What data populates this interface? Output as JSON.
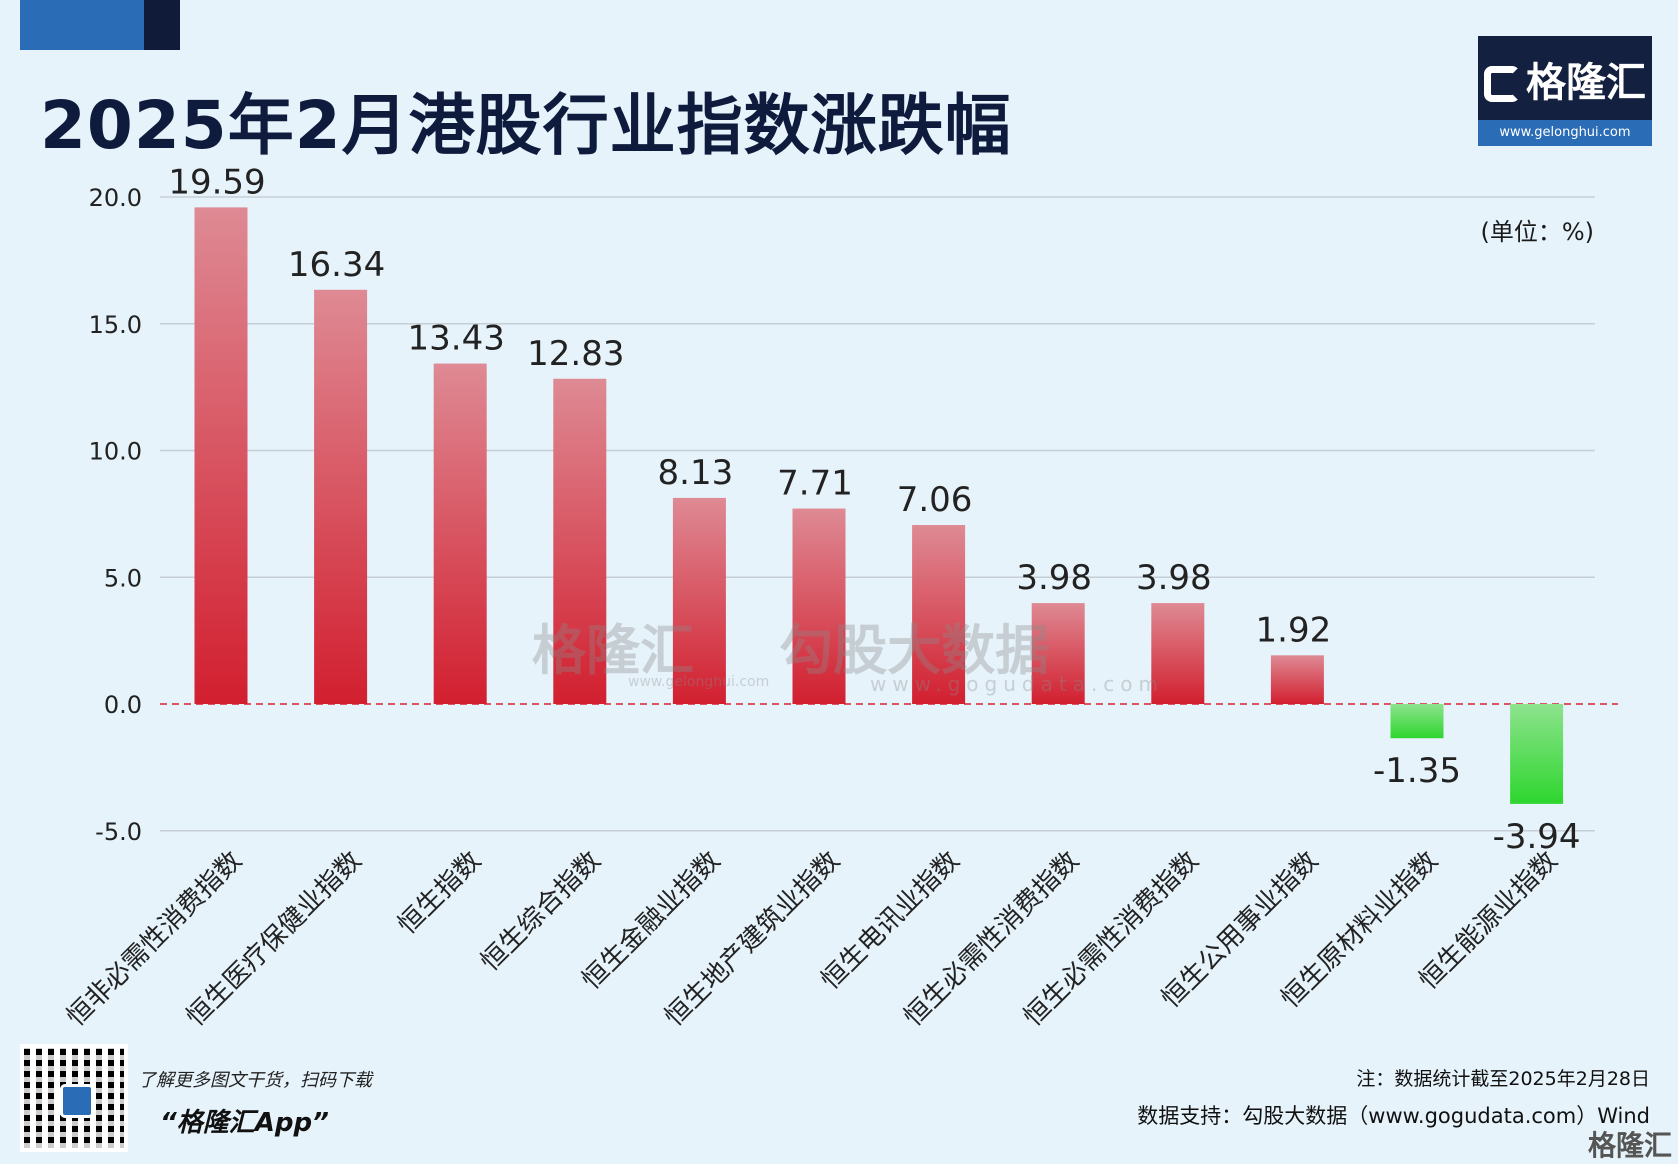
{
  "title": "2025年2月港股行业指数涨跌幅",
  "unit": "(单位：%)",
  "brand": {
    "name": "格隆汇",
    "url": "www.gelonghui.com"
  },
  "watermark": {
    "brand": "格隆汇",
    "brand_url": "www.gelonghui.com",
    "partner": "勾股大数据",
    "partner_url": "www.gogudata.com"
  },
  "footer": {
    "promo": "了解更多图文干货，扫码下载",
    "app_name": "“格隆汇App”",
    "note": "注：数据统计截至2025年2月28日",
    "source": "数据支持：勾股大数据（www.gogudata.com）Wind",
    "corner_logo": "格隆汇"
  },
  "colors": {
    "positive_top": "#de8a94",
    "positive_bottom": "#d21f2f",
    "negative_top": "#8de38d",
    "negative_bottom": "#2ed62e",
    "zero_line": "#d8232f",
    "grid": "#c7ced6"
  },
  "chart_data": {
    "type": "bar",
    "categories": [
      "恒非必需性消费指数",
      "恒生医疗保健业指数",
      "恒生指数",
      "恒生综合指数",
      "恒生金融业指数",
      "恒生地产建筑业指数",
      "恒生电讯业指数",
      "恒生必需性消费指数",
      "恒生必需性消费指数",
      "恒生公用事业指数",
      "恒生原材料业指数",
      "恒生能源业指数"
    ],
    "values": [
      19.59,
      16.34,
      13.43,
      12.83,
      8.13,
      7.71,
      7.06,
      3.98,
      3.98,
      1.92,
      -1.35,
      -3.94
    ],
    "value_labels": [
      "19.59",
      "16.34",
      "13.43",
      "12.83",
      "8.13",
      "7.71",
      "7.06",
      "3.98",
      "3.98",
      "1.92",
      "-1.35",
      "-3.94"
    ],
    "yticks": [
      "20.0",
      "15.0",
      "10.0",
      "5.0",
      "0.0",
      "-5.0"
    ],
    "ytick_values": [
      20,
      15,
      10,
      5,
      0,
      -5
    ],
    "ylim": [
      -5,
      20
    ],
    "grid": true
  }
}
